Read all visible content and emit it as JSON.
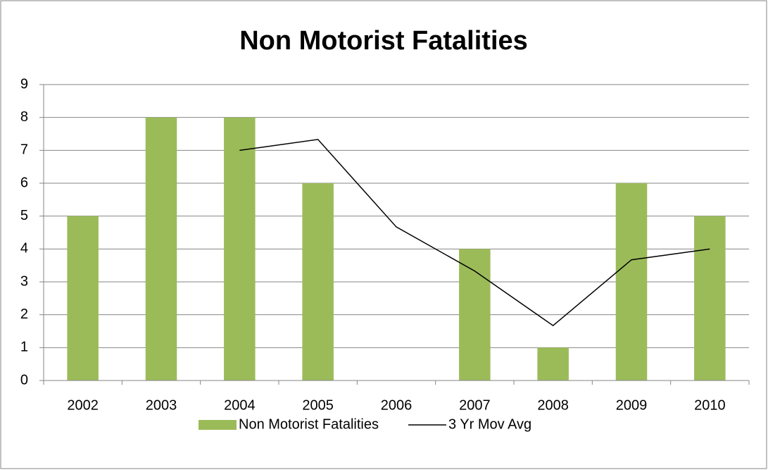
{
  "chart_data": {
    "type": "bar",
    "title": "Non Motorist Fatalities",
    "categories": [
      "2002",
      "2003",
      "2004",
      "2005",
      "2006",
      "2007",
      "2008",
      "2009",
      "2010"
    ],
    "series": [
      {
        "name": "Non Motorist Fatalities",
        "type": "bar",
        "color": "#9bbb59",
        "values": [
          5,
          8,
          8,
          6,
          0,
          4,
          1,
          6,
          5
        ]
      },
      {
        "name": "3 Yr Mov Avg",
        "type": "line",
        "color": "#000000",
        "values": [
          null,
          null,
          7,
          7.33,
          4.67,
          3.33,
          1.67,
          3.67,
          4
        ]
      }
    ],
    "ylim": [
      0,
      9
    ],
    "yticks": [
      0,
      1,
      2,
      3,
      4,
      5,
      6,
      7,
      8,
      9
    ],
    "grid": true,
    "legend": "bottom"
  }
}
